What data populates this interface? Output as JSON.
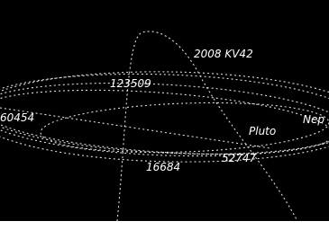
{
  "labels": [
    "2008 KV42",
    "123509",
    "Pluto",
    "Nep",
    "60454",
    "16684",
    "52747"
  ]
}
